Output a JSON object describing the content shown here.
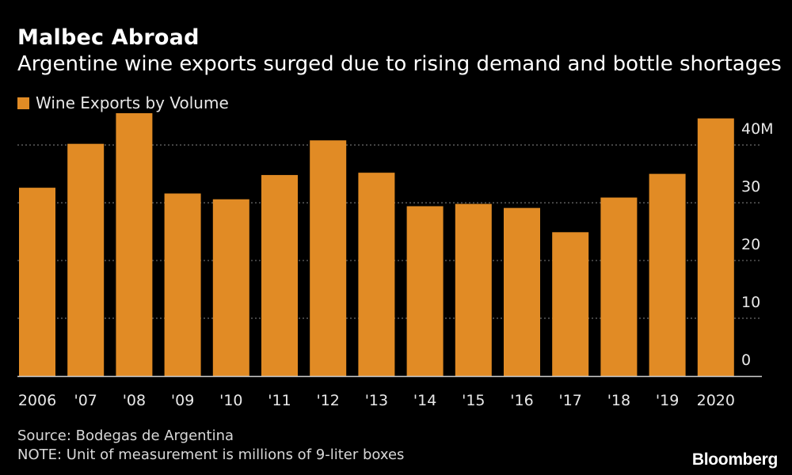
{
  "colors": {
    "bar": "#e18b25",
    "background": "#000000",
    "grid": "#6e6e6e",
    "text": "#ffffff"
  },
  "chart_data": {
    "type": "bar",
    "title": "Malbec Abroad",
    "subtitle": "Argentine wine exports surged due to rising demand and bottle shortages",
    "categories": [
      "2006",
      "'07",
      "'08",
      "'09",
      "'10",
      "'11",
      "'12",
      "'13",
      "'14",
      "'15",
      "'16",
      "'17",
      "'18",
      "'19",
      "2020"
    ],
    "series": [
      {
        "name": "Wine Exports by Volume",
        "values": [
          32.6,
          40.2,
          45.5,
          31.6,
          30.6,
          34.8,
          40.8,
          35.2,
          29.4,
          29.8,
          29.1,
          24.9,
          30.9,
          35.0,
          44.6
        ]
      }
    ],
    "y_ticks": [
      0,
      10,
      20,
      30,
      40
    ],
    "y_tick_labels": [
      "0",
      "10",
      "20",
      "30",
      "40M"
    ],
    "ylim": [
      0,
      45.5
    ],
    "xlabel": "",
    "ylabel": "",
    "grid": true,
    "legend_position": "top-left",
    "y_axis_position": "right"
  },
  "footer": {
    "source": "Source: Bodegas de Argentina",
    "note": "NOTE: Unit of measurement is millions of 9-liter boxes",
    "brand": "Bloomberg"
  }
}
